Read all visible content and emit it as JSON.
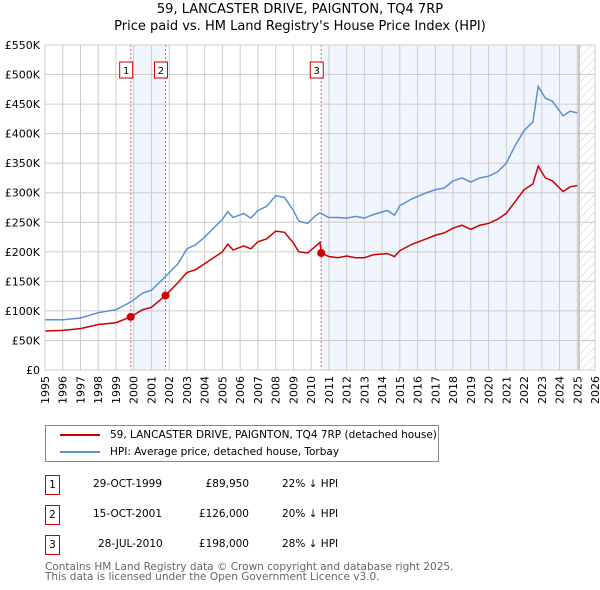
{
  "chart_data": {
    "type": "line",
    "title": "59, LANCASTER DRIVE, PAIGNTON, TQ4 7RP",
    "subtitle": "Price paid vs. HM Land Registry's House Price Index (HPI)",
    "xlim": [
      1995,
      2026
    ],
    "ylim": [
      0,
      550000
    ],
    "x_ticks": [
      "1995",
      "1996",
      "1997",
      "1998",
      "1999",
      "2000",
      "2001",
      "2002",
      "2003",
      "2004",
      "2005",
      "2006",
      "2007",
      "2008",
      "2009",
      "2010",
      "2011",
      "2012",
      "2013",
      "2014",
      "2015",
      "2016",
      "2017",
      "2018",
      "2019",
      "2020",
      "2021",
      "2022",
      "2023",
      "2024",
      "2025",
      "2026"
    ],
    "y_ticks": [
      {
        "v": 0,
        "label": "£0"
      },
      {
        "v": 50000,
        "label": "£50K"
      },
      {
        "v": 100000,
        "label": "£100K"
      },
      {
        "v": 150000,
        "label": "£150K"
      },
      {
        "v": 200000,
        "label": "£200K"
      },
      {
        "v": 250000,
        "label": "£250K"
      },
      {
        "v": 300000,
        "label": "£300K"
      },
      {
        "v": 350000,
        "label": "£350K"
      },
      {
        "v": 400000,
        "label": "£400K"
      },
      {
        "v": 450000,
        "label": "£450K"
      },
      {
        "v": 500000,
        "label": "£500K"
      },
      {
        "v": 550000,
        "label": "£550K"
      }
    ],
    "grid": true,
    "data_end": 2025.1,
    "series": [
      {
        "name": "59, LANCASTER DRIVE, PAIGNTON, TQ4 7RP (detached house)",
        "color": "#cc0000",
        "x": [
          1995,
          1996,
          1997,
          1998,
          1999,
          1999.83,
          2000.5,
          2001,
          2001.79,
          2002.5,
          2003,
          2003.5,
          2004,
          2004.5,
          2005,
          2005.3,
          2005.6,
          2006.2,
          2006.6,
          2007,
          2007.5,
          2008,
          2008.5,
          2009,
          2009.3,
          2009.8,
          2010.2,
          2010.5,
          2010.57,
          2011,
          2011.5,
          2012,
          2012.5,
          2013,
          2013.5,
          2014.3,
          2014.7,
          2015,
          2015.7,
          2016.5,
          2017,
          2017.5,
          2018,
          2018.5,
          2019,
          2019.5,
          2020,
          2020.5,
          2021,
          2021.5,
          2022,
          2022.5,
          2022.8,
          2023.2,
          2023.6,
          2024.2,
          2024.6,
          2025
        ],
        "y": [
          66000,
          67000,
          70000,
          77000,
          80000,
          89950,
          102000,
          106000,
          126000,
          148000,
          165000,
          170000,
          180000,
          190000,
          200000,
          213000,
          203000,
          210000,
          205000,
          217000,
          222000,
          235000,
          233000,
          215000,
          200000,
          198000,
          208000,
          216000,
          198000,
          192000,
          190000,
          193000,
          190000,
          190000,
          195000,
          197000,
          192000,
          202000,
          213000,
          222000,
          228000,
          232000,
          240000,
          245000,
          238000,
          245000,
          248000,
          255000,
          265000,
          285000,
          305000,
          315000,
          345000,
          325000,
          320000,
          302000,
          310000,
          312000
        ]
      },
      {
        "name": "HPI: Average price, detached house, Torbay",
        "color": "#5b8fd0",
        "x": [
          1995,
          1996,
          1997,
          1998,
          1999,
          1999.83,
          2000.5,
          2001,
          2001.79,
          2002.5,
          2003,
          2003.5,
          2004,
          2004.5,
          2005,
          2005.3,
          2005.6,
          2006.2,
          2006.6,
          2007,
          2007.5,
          2008,
          2008.5,
          2009,
          2009.3,
          2009.8,
          2010.2,
          2010.5,
          2011,
          2011.5,
          2012,
          2012.5,
          2013,
          2013.5,
          2014.3,
          2014.7,
          2015,
          2015.7,
          2016.5,
          2017,
          2017.5,
          2018,
          2018.5,
          2019,
          2019.5,
          2020,
          2020.5,
          2021,
          2021.5,
          2022,
          2022.5,
          2022.8,
          2023.2,
          2023.6,
          2024.2,
          2024.6,
          2025
        ],
        "y": [
          85000,
          85000,
          88000,
          97000,
          102000,
          115000,
          130000,
          135000,
          158000,
          180000,
          205000,
          212000,
          225000,
          240000,
          255000,
          268000,
          258000,
          265000,
          257000,
          270000,
          277000,
          295000,
          292000,
          270000,
          252000,
          248000,
          260000,
          266000,
          258000,
          258000,
          257000,
          260000,
          257000,
          263000,
          270000,
          262000,
          278000,
          290000,
          300000,
          305000,
          308000,
          320000,
          325000,
          318000,
          325000,
          328000,
          335000,
          350000,
          380000,
          405000,
          420000,
          480000,
          460000,
          455000,
          430000,
          438000,
          435000
        ]
      }
    ],
    "sales": [
      {
        "n": "1",
        "x": 1999.83,
        "date": "29-OCT-1999",
        "price": "£89,950",
        "price_value": 89950,
        "hpi": "22% ↓ HPI"
      },
      {
        "n": "2",
        "x": 2001.79,
        "date": "15-OCT-2001",
        "price": "£126,000",
        "price_value": 126000,
        "hpi": "20% ↓ HPI"
      },
      {
        "n": "3",
        "x": 2010.57,
        "date": "28-JUL-2010",
        "price": "£198,000",
        "price_value": 198000,
        "hpi": "28% ↓ HPI"
      }
    ]
  },
  "footer": {
    "line1": "Contains HM Land Registry data © Crown copyright and database right 2025.",
    "line2": "This data is licensed under the Open Government Licence v3.0."
  }
}
